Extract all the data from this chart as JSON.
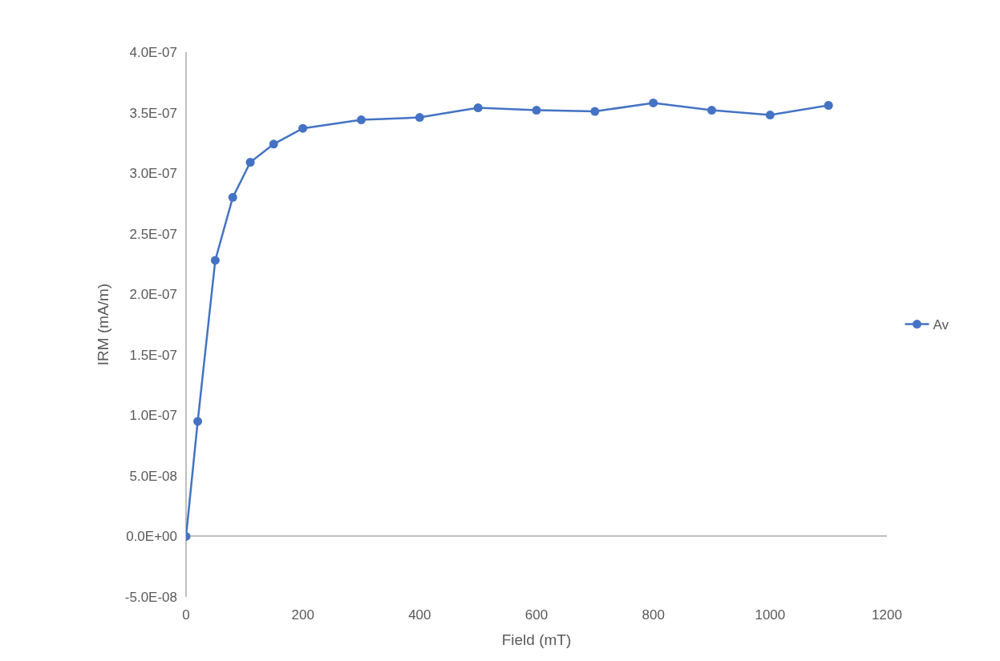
{
  "chart_data": {
    "type": "line",
    "xlabel": "Field (mT)",
    "ylabel": "IRM (mA/m)",
    "x": [
      0,
      20,
      50,
      80,
      110,
      150,
      200,
      300,
      400,
      500,
      600,
      700,
      800,
      900,
      1000,
      1100
    ],
    "series": [
      {
        "name": "Av",
        "color": "#4472c4",
        "values": [
          0,
          9.5e-08,
          2.28e-07,
          2.8e-07,
          3.09e-07,
          3.24e-07,
          3.37e-07,
          3.44e-07,
          3.46e-07,
          3.54e-07,
          3.52e-07,
          3.51e-07,
          3.58e-07,
          3.52e-07,
          3.48e-07,
          3.56e-07
        ]
      }
    ],
    "xlim": [
      0,
      1200
    ],
    "xticks": [
      0,
      200,
      400,
      600,
      800,
      1000,
      1200
    ],
    "ylim": [
      -5e-08,
      4e-07
    ],
    "yticks": [
      {
        "value": -5e-08,
        "label": "-5.0E-08"
      },
      {
        "value": 0,
        "label": "0.0E+00"
      },
      {
        "value": 5e-08,
        "label": "5.0E-08"
      },
      {
        "value": 1e-07,
        "label": "1.0E-07"
      },
      {
        "value": 1.5e-07,
        "label": "1.5E-07"
      },
      {
        "value": 2e-07,
        "label": "2.0E-07"
      },
      {
        "value": 2.5e-07,
        "label": "2.5E-07"
      },
      {
        "value": 3e-07,
        "label": "3.0E-07"
      },
      {
        "value": 3.5e-07,
        "label": "3.5E-07"
      },
      {
        "value": 4e-07,
        "label": "4.0E-07"
      }
    ],
    "legend": "right",
    "marker": "circle",
    "line_style": "solid"
  }
}
